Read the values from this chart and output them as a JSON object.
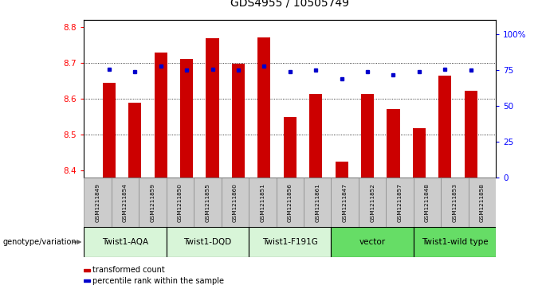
{
  "title": "GDS4955 / 10505749",
  "samples": [
    "GSM1211849",
    "GSM1211854",
    "GSM1211859",
    "GSM1211850",
    "GSM1211855",
    "GSM1211860",
    "GSM1211851",
    "GSM1211856",
    "GSM1211861",
    "GSM1211847",
    "GSM1211852",
    "GSM1211857",
    "GSM1211848",
    "GSM1211853",
    "GSM1211858"
  ],
  "bar_values": [
    8.645,
    8.59,
    8.73,
    8.713,
    8.77,
    8.698,
    8.773,
    8.55,
    8.613,
    8.425,
    8.613,
    8.572,
    8.518,
    8.665,
    8.622
  ],
  "dot_values": [
    76,
    74,
    78,
    75,
    76,
    75,
    78,
    74,
    75,
    69,
    74,
    72,
    74,
    76,
    75
  ],
  "bar_color": "#cc0000",
  "dot_color": "#0000cc",
  "ylim_left": [
    8.38,
    8.82
  ],
  "ylim_right": [
    0,
    110
  ],
  "yticks_left": [
    8.4,
    8.5,
    8.6,
    8.7,
    8.8
  ],
  "yticks_right": [
    0,
    25,
    50,
    75,
    100
  ],
  "ytick_right_labels": [
    "0",
    "25",
    "50",
    "75",
    "100%"
  ],
  "gridlines": [
    8.5,
    8.6,
    8.7
  ],
  "groups": [
    {
      "label": "Twist1-AQA",
      "start": 0,
      "end": 2,
      "color": "#d8f5d8"
    },
    {
      "label": "Twist1-DQD",
      "start": 3,
      "end": 5,
      "color": "#d8f5d8"
    },
    {
      "label": "Twist1-F191G",
      "start": 6,
      "end": 8,
      "color": "#d8f5d8"
    },
    {
      "label": "vector",
      "start": 9,
      "end": 11,
      "color": "#66dd66"
    },
    {
      "label": "Twist1-wild type",
      "start": 12,
      "end": 14,
      "color": "#66dd66"
    }
  ],
  "legend_red_label": "transformed count",
  "legend_blue_label": "percentile rank within the sample",
  "genotype_label": "genotype/variation",
  "bar_width": 0.5,
  "sample_box_color": "#cccccc",
  "background_color": "#ffffff"
}
